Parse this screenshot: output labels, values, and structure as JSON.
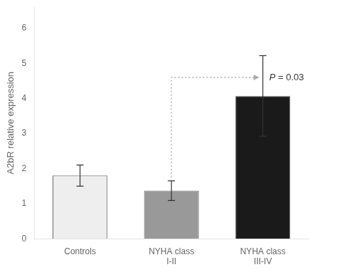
{
  "chart_data": {
    "type": "bar",
    "categories": [
      "Controls",
      "NYHA class\nI-II",
      "NYHA class\nIII-IV"
    ],
    "values": [
      1.8,
      1.37,
      4.07
    ],
    "errors": [
      0.3,
      0.28,
      1.15
    ],
    "colors": [
      "#eeeeee",
      "#999999",
      "#1a1a1a"
    ],
    "ylabel": "A2bR relative expression",
    "ylim": [
      0,
      6.6
    ],
    "yticks": [
      0,
      1,
      2,
      3,
      4,
      5,
      6
    ],
    "grid": false,
    "annotations": [
      {
        "text": "P = 0.03",
        "y": 4.6,
        "from": "NYHA class\nI-II",
        "to": "NYHA class\nIII-IV"
      }
    ]
  }
}
